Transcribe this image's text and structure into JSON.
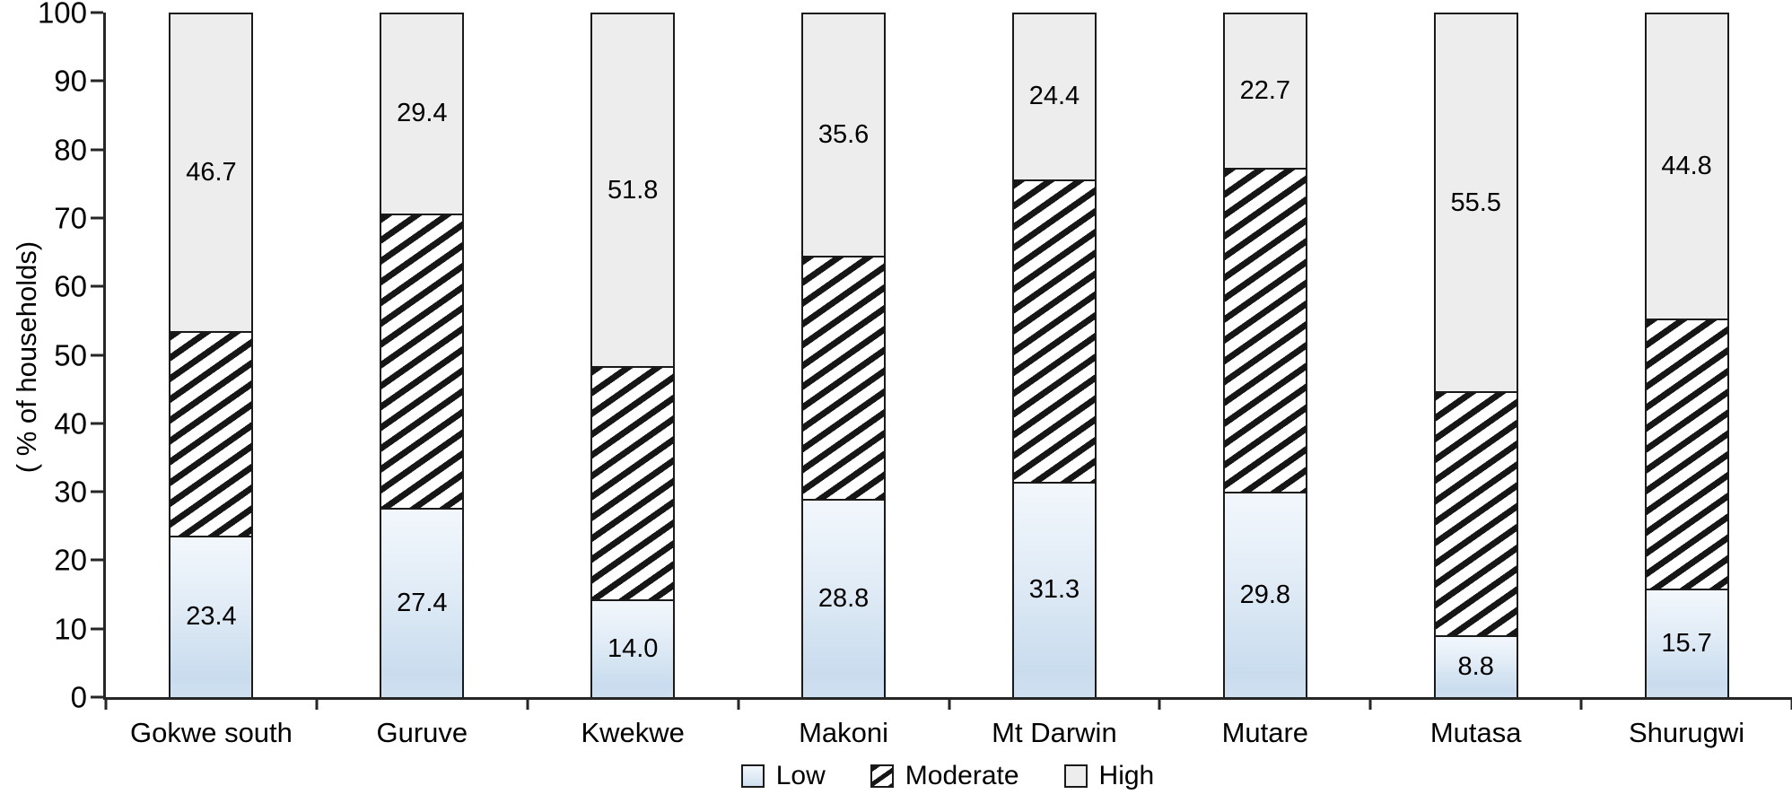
{
  "chart_data": {
    "type": "bar",
    "variant": "stacked-100",
    "title": "",
    "xlabel": "",
    "ylabel": "( % of households)",
    "ylim": [
      0,
      100
    ],
    "ytick_step": 10,
    "ytick_labels": [
      "0",
      "10",
      "20",
      "30",
      "40",
      "50",
      "60",
      "70",
      "80",
      "90",
      "100"
    ],
    "grid": false,
    "legend_position": "bottom-center",
    "categories": [
      "Gokwe south",
      "Guruve",
      "Kwekwe",
      "Makoni",
      "Mt Darwin",
      "Mutare",
      "Mutasa",
      "Shurugwi"
    ],
    "series": [
      {
        "name": "Low",
        "values": [
          23.4,
          27.4,
          14.0,
          28.8,
          31.3,
          29.8,
          8.8,
          15.7
        ],
        "value_labels": [
          "23.4",
          "27.4",
          "14.0",
          "28.8",
          "31.3",
          "29.8",
          "8.8",
          "15.7"
        ],
        "labels_visible": true,
        "fill": "blue-gradient"
      },
      {
        "name": "Moderate",
        "values": [
          29.9,
          43.2,
          34.2,
          35.6,
          44.3,
          47.5,
          35.7,
          39.5
        ],
        "value_labels": [
          "",
          "",
          "",
          "",
          "",
          "",
          "",
          ""
        ],
        "labels_visible": false,
        "note": "segment heights shown but not numerically labeled; values inferred as 100 - Low - High",
        "fill": "black-diagonal-hatch"
      },
      {
        "name": "High",
        "values": [
          46.7,
          29.4,
          51.8,
          35.6,
          24.4,
          22.7,
          55.5,
          44.8
        ],
        "value_labels": [
          "46.7",
          "29.4",
          "51.8",
          "35.6",
          "24.4",
          "22.7",
          "55.5",
          "44.8"
        ],
        "labels_visible": true,
        "fill": "light-gray"
      }
    ]
  },
  "legend": {
    "items": [
      {
        "label": "Low"
      },
      {
        "label": "Moderate"
      },
      {
        "label": "High"
      }
    ]
  },
  "colors": {
    "low_gradient_top": "#f2f7fc",
    "low_gradient_bottom": "#cfe0f0",
    "moderate_stripe": "#161616",
    "moderate_background": "#ffffff",
    "high_fill": "#ededed",
    "segment_border": "#1a1a1a",
    "axis": "#262626",
    "text": "#000000",
    "background": "#ffffff"
  }
}
